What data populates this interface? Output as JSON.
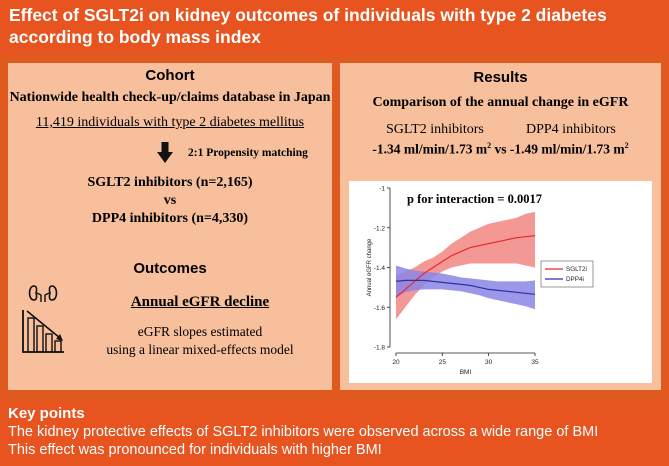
{
  "header": {
    "title": "Effect of SGLT2i on kidney outcomes of individuals with type 2 diabetes according to body mass index"
  },
  "cohort": {
    "heading": "Cohort",
    "database": "Nationwide health check-up/claims database in Japan",
    "population": "11,419 individuals with type 2 diabetes mellitus",
    "matching": "2:1 Propensity matching",
    "group1": "SGLT2 inhibitors (n=2,165)",
    "vs": "vs",
    "group2": "DPP4 inhibitors (n=4,330)"
  },
  "outcomes": {
    "heading": "Outcomes",
    "title": "Annual eGFR decline",
    "line1": "eGFR slopes estimated",
    "line2": "using a linear mixed-effects model"
  },
  "results": {
    "heading": "Results",
    "subtitle": "Comparison of the annual change in eGFR",
    "label_sglt2": "SGLT2 inhibitors",
    "label_dpp4": "DPP4 inhibitors",
    "value_sglt2": "-1.34 ml/min/1.73 m",
    "sup": "2",
    "vs": "vs",
    "value_dpp4": "-1.49 ml/min/1.73 m"
  },
  "chart_data": {
    "type": "line",
    "annotation": "p for interaction = 0.0017",
    "xlabel": "BMI",
    "ylabel": "Annual eGFR change",
    "xlim": [
      20,
      35
    ],
    "ylim": [
      -1.8,
      -1.0
    ],
    "xticks": [
      20,
      25,
      30,
      35
    ],
    "yticks": [
      -1,
      -1.2,
      -1.4,
      -1.6,
      -1.8
    ],
    "legend_position": "right",
    "series": [
      {
        "name": "SGLT2i",
        "color": "#e8272a",
        "band_color": "#f28684",
        "x": [
          20,
          21,
          22,
          23,
          24,
          25,
          26,
          27,
          28,
          29,
          30,
          31,
          32,
          33,
          34,
          35
        ],
        "y": [
          -1.55,
          -1.51,
          -1.47,
          -1.43,
          -1.4,
          -1.37,
          -1.34,
          -1.32,
          -1.3,
          -1.29,
          -1.28,
          -1.27,
          -1.26,
          -1.25,
          -1.245,
          -1.24
        ],
        "lower": [
          -1.66,
          -1.6,
          -1.54,
          -1.49,
          -1.45,
          -1.42,
          -1.4,
          -1.39,
          -1.38,
          -1.38,
          -1.38,
          -1.38,
          -1.38,
          -1.38,
          -1.39,
          -1.4
        ],
        "upper": [
          -1.44,
          -1.42,
          -1.4,
          -1.37,
          -1.35,
          -1.32,
          -1.28,
          -1.25,
          -1.22,
          -1.2,
          -1.18,
          -1.17,
          -1.16,
          -1.15,
          -1.13,
          -1.12
        ]
      },
      {
        "name": "DPP4i",
        "color": "#2f2fa6",
        "band_color": "#8a86e6",
        "x": [
          20,
          21,
          22,
          23,
          24,
          25,
          26,
          27,
          28,
          29,
          30,
          31,
          32,
          33,
          34,
          35
        ],
        "y": [
          -1.47,
          -1.465,
          -1.465,
          -1.465,
          -1.47,
          -1.475,
          -1.48,
          -1.485,
          -1.49,
          -1.5,
          -1.51,
          -1.515,
          -1.52,
          -1.525,
          -1.53,
          -1.535
        ],
        "lower": [
          -1.55,
          -1.525,
          -1.515,
          -1.51,
          -1.51,
          -1.51,
          -1.515,
          -1.52,
          -1.53,
          -1.54,
          -1.555,
          -1.565,
          -1.575,
          -1.585,
          -1.595,
          -1.61
        ],
        "upper": [
          -1.39,
          -1.405,
          -1.415,
          -1.42,
          -1.425,
          -1.43,
          -1.44,
          -1.45,
          -1.455,
          -1.46,
          -1.465,
          -1.47,
          -1.47,
          -1.47,
          -1.47,
          -1.465
        ]
      }
    ]
  },
  "key_points": {
    "heading": "Key points",
    "line1": "The kidney protective effects of SGLT2 inhibitors were observed across a wide range of BMI",
    "line2": "This effect was pronounced for individuals with higher BMI"
  },
  "icons": {
    "arrow": "down-arrow-icon",
    "kidney": "kidney-decline-chart-icon"
  }
}
